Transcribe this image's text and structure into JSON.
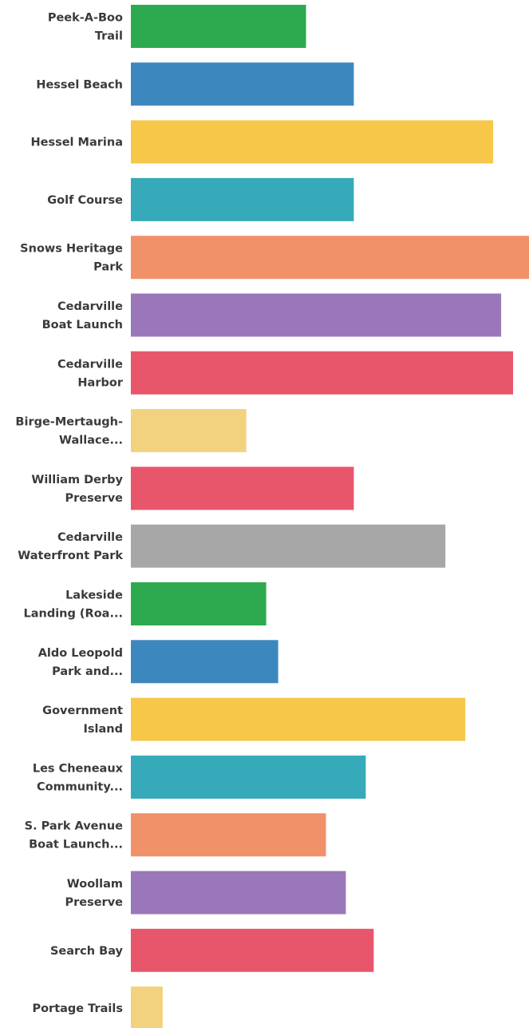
{
  "chart_data": {
    "type": "bar",
    "orientation": "horizontal",
    "categories": [
      [
        "Peek-A-Boo",
        "Trail"
      ],
      [
        "Hessel Beach"
      ],
      [
        "Hessel Marina"
      ],
      [
        "Golf Course"
      ],
      [
        "Snows Heritage",
        "Park"
      ],
      [
        "Cedarville",
        "Boat Launch"
      ],
      [
        "Cedarville",
        "Harbor"
      ],
      [
        "Birge-Mertaugh-",
        "Wallace..."
      ],
      [
        "William Derby",
        "Preserve"
      ],
      [
        "Cedarville",
        "Waterfront Park"
      ],
      [
        "Lakeside",
        "Landing (Roa..."
      ],
      [
        "Aldo Leopold",
        "Park and..."
      ],
      [
        "Government",
        "Island"
      ],
      [
        "Les Cheneaux",
        "Community..."
      ],
      [
        "S. Park Avenue",
        "Boat Launch..."
      ],
      [
        "Woollam",
        "Preserve"
      ],
      [
        "Search Bay"
      ],
      [
        "Portage Trails"
      ]
    ],
    "values": [
      44,
      56,
      91,
      56,
      100,
      93,
      96,
      29,
      56,
      79,
      34,
      37,
      84,
      59,
      49,
      54,
      61,
      8
    ],
    "xlim": [
      0,
      100
    ],
    "colors": [
      "#2daa4f",
      "#3d87bf",
      "#f7c74a",
      "#36aab9",
      "#f0916a",
      "#9a77b8",
      "#e8566b",
      "#f3d27f",
      "#e8566b",
      "#a7a7a7",
      "#2daa4f",
      "#3d87bf",
      "#f7c74a",
      "#36aab9",
      "#f0916a",
      "#9a77b8",
      "#e8566b",
      "#f3d27f"
    ],
    "title": "",
    "xlabel": "",
    "ylabel": "",
    "grid": false,
    "legend": "none"
  }
}
